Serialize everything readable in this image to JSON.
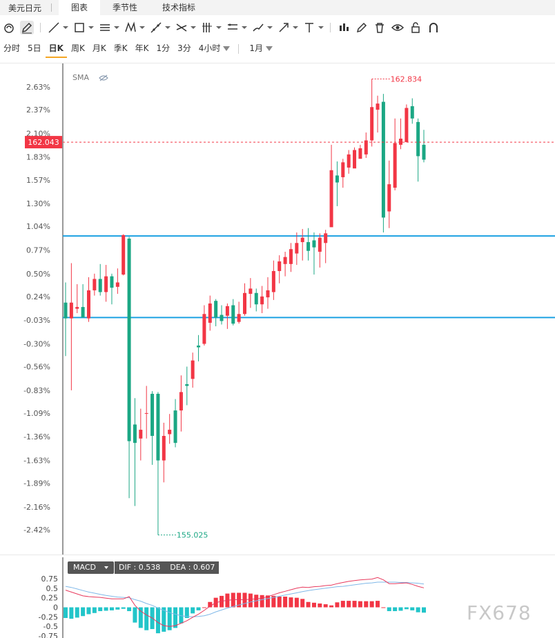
{
  "header": {
    "symbol": "美元日元",
    "tabs": [
      {
        "label": "图表",
        "active": true
      },
      {
        "label": "季节性",
        "active": false
      },
      {
        "label": "技术指标",
        "active": false
      }
    ]
  },
  "toolbar_icons": [
    "magnet-icon",
    "pencil-icon",
    "line-icon",
    "rectangle-icon",
    "parallel-lines-icon",
    "pattern-icon",
    "fibonacci-icon",
    "crossline-icon",
    "gann-icon",
    "channel-icon",
    "brush-icon",
    "arrow-icon",
    "text-icon",
    "indicator-icon",
    "edit-icon",
    "trash-icon",
    "eye-icon",
    "lock-icon",
    "magnet-off-icon"
  ],
  "periods": [
    {
      "label": "分时"
    },
    {
      "label": "5日"
    },
    {
      "label": "日K",
      "active": true
    },
    {
      "label": "周K"
    },
    {
      "label": "月K"
    },
    {
      "label": "季K"
    },
    {
      "label": "年K"
    },
    {
      "label": "1分"
    },
    {
      "label": "3分"
    },
    {
      "label": "4小时",
      "dropdown": true
    }
  ],
  "range_select": "1月",
  "indicator_label": "SMA",
  "colors": {
    "up": "#f23645",
    "down": "#1ba784",
    "hline": "#1ba1e2",
    "dif": "#e8385c",
    "dea": "#7fb8e8"
  },
  "chart_data": {
    "type": "candlestick",
    "y_ticks": [
      "2.63%",
      "2.37%",
      "2.10%",
      "1.83%",
      "1.57%",
      "1.30%",
      "1.04%",
      "0.77%",
      "0.50%",
      "0.24%",
      "-0.03%",
      "-0.30%",
      "-0.56%",
      "-0.83%",
      "-1.09%",
      "-1.36%",
      "-1.63%",
      "-1.89%",
      "-2.16%",
      "-2.42%"
    ],
    "ylim_percent": [
      -2.42,
      2.63
    ],
    "current_price": "162.043",
    "current_price_pct": 2.0,
    "high_label": "162.834",
    "low_label": "155.025",
    "horizontal_lines_pct": [
      0.93,
      0.0
    ],
    "candles_pct": [
      [
        0.17,
        -0.01,
        0.4,
        -0.44
      ],
      [
        -0.01,
        0.17,
        0.62,
        -0.83
      ],
      [
        0.1,
        0.12,
        0.38,
        0.05
      ],
      [
        0.12,
        0.0,
        0.38,
        0.1
      ],
      [
        -0.01,
        0.31,
        0.46,
        -0.05
      ],
      [
        0.31,
        0.44,
        0.5,
        0.25
      ],
      [
        0.44,
        0.29,
        0.61,
        0.25
      ],
      [
        0.29,
        0.47,
        0.6,
        0.18
      ],
      [
        0.47,
        0.34,
        0.5,
        0.15
      ],
      [
        0.35,
        0.4,
        0.56,
        0.27
      ],
      [
        0.49,
        0.94,
        0.95,
        0.48
      ],
      [
        0.9,
        -1.41,
        0.92,
        -2.06
      ],
      [
        -1.22,
        -1.43,
        -0.92,
        -2.15
      ],
      [
        -1.38,
        -1.28,
        -1.04,
        -1.63
      ],
      [
        -1.09,
        -1.09,
        -0.78,
        -1.38
      ],
      [
        -0.87,
        -1.35,
        -0.84,
        -1.68
      ],
      [
        -0.87,
        -1.63,
        -0.85,
        -2.48
      ],
      [
        -1.63,
        -1.35,
        -1.2,
        -1.88
      ],
      [
        -1.33,
        -1.28,
        -1.1,
        -1.44
      ],
      [
        -1.06,
        -1.43,
        -0.93,
        -1.48
      ],
      [
        -1.06,
        -0.85,
        -0.66,
        -1.3
      ],
      [
        -0.76,
        -0.78,
        -0.56,
        -1.0
      ],
      [
        -0.7,
        -0.49,
        -0.4,
        -0.8
      ],
      [
        -0.32,
        -0.34,
        -0.2,
        -0.5
      ],
      [
        -0.3,
        0.04,
        0.14,
        -0.32
      ],
      [
        -0.06,
        0.16,
        0.25,
        -0.15
      ],
      [
        0.19,
        0.0,
        0.21,
        -0.1
      ],
      [
        0.03,
        -0.04,
        0.14,
        -0.08
      ],
      [
        0.02,
        0.13,
        0.16,
        -0.13
      ],
      [
        0.14,
        -0.07,
        0.21,
        -0.09
      ],
      [
        -0.05,
        0.04,
        0.18,
        -0.07
      ],
      [
        0.04,
        0.28,
        0.39,
        0.02
      ],
      [
        0.27,
        0.33,
        0.45,
        0.11
      ],
      [
        0.28,
        0.15,
        0.33,
        0.07
      ],
      [
        0.15,
        0.24,
        0.36,
        0.05
      ],
      [
        0.23,
        0.31,
        0.46,
        0.1
      ],
      [
        0.29,
        0.53,
        0.65,
        0.2
      ],
      [
        0.53,
        0.64,
        0.71,
        0.39
      ],
      [
        0.61,
        0.69,
        0.75,
        0.47
      ],
      [
        0.61,
        0.78,
        0.85,
        0.52
      ],
      [
        0.73,
        0.85,
        0.97,
        0.6
      ],
      [
        0.86,
        0.91,
        1.01,
        0.65
      ],
      [
        0.86,
        0.76,
        1.02,
        0.65
      ],
      [
        0.88,
        0.8,
        0.97,
        0.49
      ],
      [
        0.75,
        0.91,
        0.96,
        0.57
      ],
      [
        0.85,
        0.96,
        1.0,
        0.62
      ],
      [
        1.03,
        1.68,
        1.97,
        1.32
      ],
      [
        1.62,
        1.54,
        1.78,
        1.27
      ],
      [
        1.6,
        1.77,
        1.81,
        1.48
      ],
      [
        1.71,
        1.86,
        1.91,
        1.64
      ],
      [
        1.7,
        1.91,
        1.94,
        1.73
      ],
      [
        1.81,
        1.93,
        1.97,
        1.82
      ],
      [
        1.86,
        2.02,
        2.11,
        1.82
      ],
      [
        2.02,
        2.4,
        2.72,
        1.95
      ],
      [
        2.37,
        2.44,
        2.53,
        2.11
      ],
      [
        2.46,
        1.14,
        2.55,
        0.97
      ],
      [
        1.21,
        1.52,
        1.79,
        1.02
      ],
      [
        1.48,
        1.99,
        2.27,
        1.45
      ],
      [
        1.97,
        2.04,
        2.27,
        1.92
      ],
      [
        2.0,
        2.39,
        2.43,
        2.0
      ],
      [
        2.41,
        2.27,
        2.5,
        2.21
      ],
      [
        2.23,
        1.84,
        2.27,
        1.55
      ],
      [
        1.97,
        1.8,
        2.14,
        1.77
      ]
    ],
    "macd": {
      "label": "MACD",
      "dif_label": "DIF",
      "dif": "0.538",
      "dea_label": "DEA",
      "dea": "0.607",
      "y_ticks": [
        "0.75",
        "0.5",
        "0.25",
        "0",
        "-0.25",
        "-0.5",
        "-0.75"
      ],
      "ylim": [
        -0.75,
        0.75
      ],
      "histogram": [
        -0.28,
        -0.3,
        -0.27,
        -0.23,
        -0.18,
        -0.15,
        -0.1,
        -0.09,
        -0.08,
        -0.06,
        -0.04,
        -0.1,
        -0.4,
        -0.54,
        -0.6,
        -0.57,
        -0.68,
        -0.64,
        -0.6,
        -0.54,
        -0.42,
        -0.28,
        -0.16,
        -0.08,
        0.0,
        0.14,
        0.25,
        0.3,
        0.36,
        0.38,
        0.38,
        0.38,
        0.36,
        0.33,
        0.32,
        0.31,
        0.3,
        0.28,
        0.28,
        0.26,
        0.25,
        0.22,
        0.14,
        0.12,
        0.1,
        0.08,
        0.05,
        0.13,
        0.17,
        0.17,
        0.17,
        0.16,
        0.16,
        0.16,
        0.17,
        0.0,
        -0.1,
        -0.1,
        -0.09,
        -0.05,
        -0.08,
        -0.13,
        -0.14
      ],
      "dif_line": [
        0.45,
        0.4,
        0.35,
        0.3,
        0.28,
        0.27,
        0.26,
        0.24,
        0.22,
        0.22,
        0.22,
        0.28,
        0.05,
        -0.1,
        -0.2,
        -0.28,
        -0.4,
        -0.48,
        -0.5,
        -0.48,
        -0.42,
        -0.35,
        -0.26,
        -0.18,
        -0.08,
        0.03,
        0.12,
        0.16,
        0.18,
        0.2,
        0.2,
        0.2,
        0.21,
        0.22,
        0.24,
        0.28,
        0.33,
        0.38,
        0.42,
        0.46,
        0.5,
        0.53,
        0.52,
        0.54,
        0.55,
        0.57,
        0.58,
        0.62,
        0.65,
        0.68,
        0.7,
        0.72,
        0.73,
        0.74,
        0.78,
        0.72,
        0.62,
        0.62,
        0.63,
        0.64,
        0.6,
        0.55,
        0.51
      ],
      "dea_line": [
        0.55,
        0.52,
        0.48,
        0.44,
        0.4,
        0.37,
        0.34,
        0.31,
        0.29,
        0.27,
        0.26,
        0.25,
        0.2,
        0.16,
        0.1,
        0.05,
        -0.02,
        -0.08,
        -0.14,
        -0.18,
        -0.22,
        -0.24,
        -0.25,
        -0.24,
        -0.22,
        -0.18,
        -0.12,
        -0.07,
        -0.02,
        0.02,
        0.06,
        0.1,
        0.14,
        0.17,
        0.2,
        0.23,
        0.26,
        0.29,
        0.32,
        0.35,
        0.38,
        0.41,
        0.44,
        0.46,
        0.48,
        0.5,
        0.52,
        0.54,
        0.55,
        0.57,
        0.59,
        0.61,
        0.63,
        0.64,
        0.66,
        0.66,
        0.66,
        0.66,
        0.65,
        0.65,
        0.64,
        0.63,
        0.61
      ]
    }
  },
  "watermark": "FX678"
}
